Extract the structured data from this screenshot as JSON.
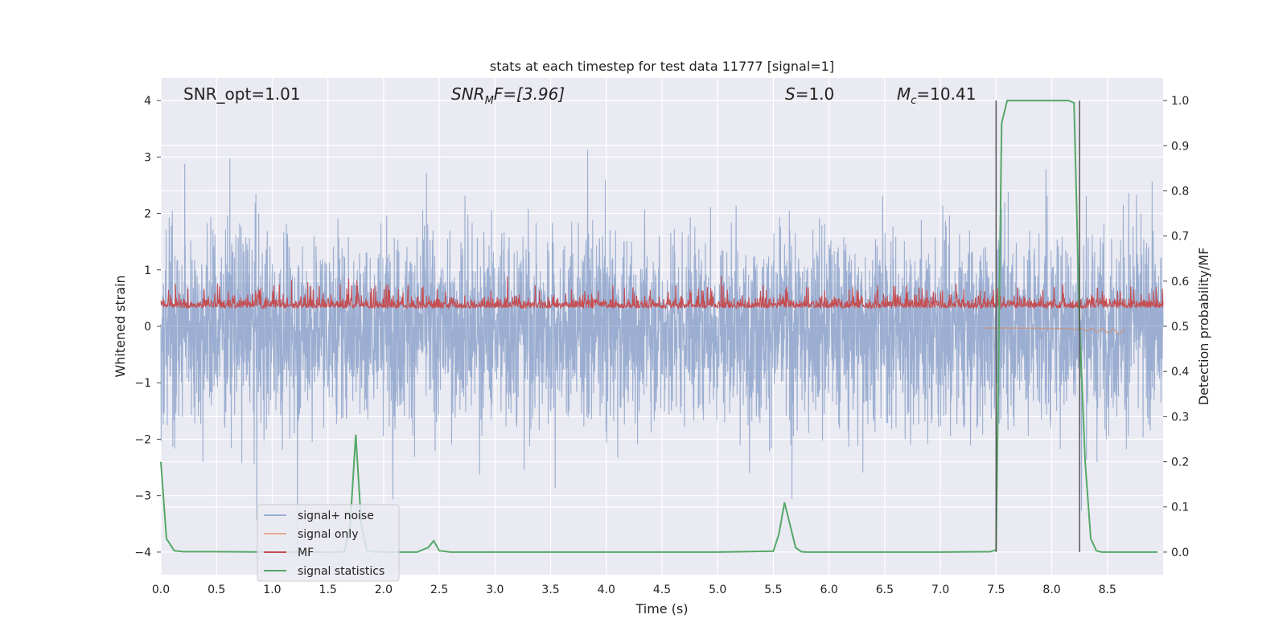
{
  "chart_data": {
    "type": "line",
    "title": "stats at each timestep for test data 11777 [signal=1]",
    "xlabel": "Time (s)",
    "ylabel": "Whitened strain",
    "y2label": "Detection probability/MF",
    "xlim": [
      0.0,
      9.0
    ],
    "ylim": [
      -4.4,
      4.4
    ],
    "y2lim": [
      -0.05,
      1.05
    ],
    "xticks": [
      0.0,
      0.5,
      1.0,
      1.5,
      2.0,
      2.5,
      3.0,
      3.5,
      4.0,
      4.5,
      5.0,
      5.5,
      6.0,
      6.5,
      7.0,
      7.5,
      8.0,
      8.5
    ],
    "xtick_labels": [
      "0.0",
      "0.5",
      "1.0",
      "1.5",
      "2.0",
      "2.5",
      "3.0",
      "3.5",
      "4.0",
      "4.5",
      "5.0",
      "5.5",
      "6.0",
      "6.5",
      "7.0",
      "7.5",
      "8.0",
      "8.5"
    ],
    "yticks": [
      -4,
      -3,
      -2,
      -1,
      0,
      1,
      2,
      3,
      4
    ],
    "ytick_labels": [
      "−4",
      "−3",
      "−2",
      "−1",
      "0",
      "1",
      "2",
      "3",
      "4"
    ],
    "y2ticks": [
      0.0,
      0.1,
      0.2,
      0.3,
      0.4,
      0.5,
      0.6,
      0.7,
      0.8,
      0.9,
      1.0
    ],
    "y2tick_labels": [
      "0.0",
      "0.1",
      "0.2",
      "0.3",
      "0.4",
      "0.5",
      "0.6",
      "0.7",
      "0.8",
      "0.9",
      "1.0"
    ],
    "grid": true,
    "legend_position": "lower-left",
    "annotations": {
      "snr_opt": "SNR_opt=1.01",
      "snr_mf_base": "SNR",
      "snr_mf_sub": "M",
      "snr_mf_rest": "F=[3.96]",
      "s_italic": "S",
      "s_rest": "=1.0",
      "mc_base": "M",
      "mc_sub": "c",
      "mc_rest": "=10.41"
    },
    "vertical_markers": [
      7.5,
      8.25
    ],
    "series": [
      {
        "name": "signal+ noise",
        "color": "#4c72b0",
        "alpha": 0.5,
        "axis": "left",
        "kind": "noise",
        "amplitude_typical": 1.7,
        "amplitude_peak": 4.0
      },
      {
        "name": "signal only",
        "color": "#dd8452",
        "alpha": 0.6,
        "axis": "left",
        "kind": "chirp",
        "x_range": [
          7.4,
          8.65
        ]
      },
      {
        "name": "MF",
        "color": "#c44e52",
        "axis": "left",
        "kind": "mf_band",
        "typical_range": [
          0.05,
          0.8
        ]
      },
      {
        "name": "signal statistics",
        "color": "#55a868",
        "axis": "right",
        "kind": "line",
        "x": [
          0.0,
          0.05,
          0.12,
          0.2,
          0.3,
          0.5,
          1.0,
          1.5,
          1.6,
          1.65,
          1.7,
          1.75,
          1.8,
          1.85,
          1.9,
          2.0,
          2.3,
          2.4,
          2.45,
          2.5,
          2.6,
          3.0,
          4.0,
          5.0,
          5.5,
          5.55,
          5.6,
          5.7,
          5.75,
          5.8,
          6.0,
          7.0,
          7.45,
          7.5,
          7.55,
          7.6,
          7.7,
          8.0,
          8.15,
          8.2,
          8.25,
          8.3,
          8.35,
          8.4,
          8.45,
          8.5,
          9.0
        ],
        "values": [
          0.2,
          0.03,
          0.003,
          0.001,
          0.001,
          0.001,
          0.0,
          0.0,
          0.0,
          0.001,
          0.06,
          0.26,
          0.06,
          0.004,
          0.001,
          0.0,
          0.0,
          0.01,
          0.025,
          0.003,
          0.0,
          0.0,
          0.0,
          0.0,
          0.002,
          0.04,
          0.11,
          0.01,
          0.001,
          0.0,
          0.0,
          0.0,
          0.001,
          0.005,
          0.95,
          1.0,
          1.0,
          1.0,
          1.0,
          0.995,
          0.5,
          0.2,
          0.03,
          0.003,
          0.0,
          0.0,
          0.0
        ]
      }
    ]
  }
}
